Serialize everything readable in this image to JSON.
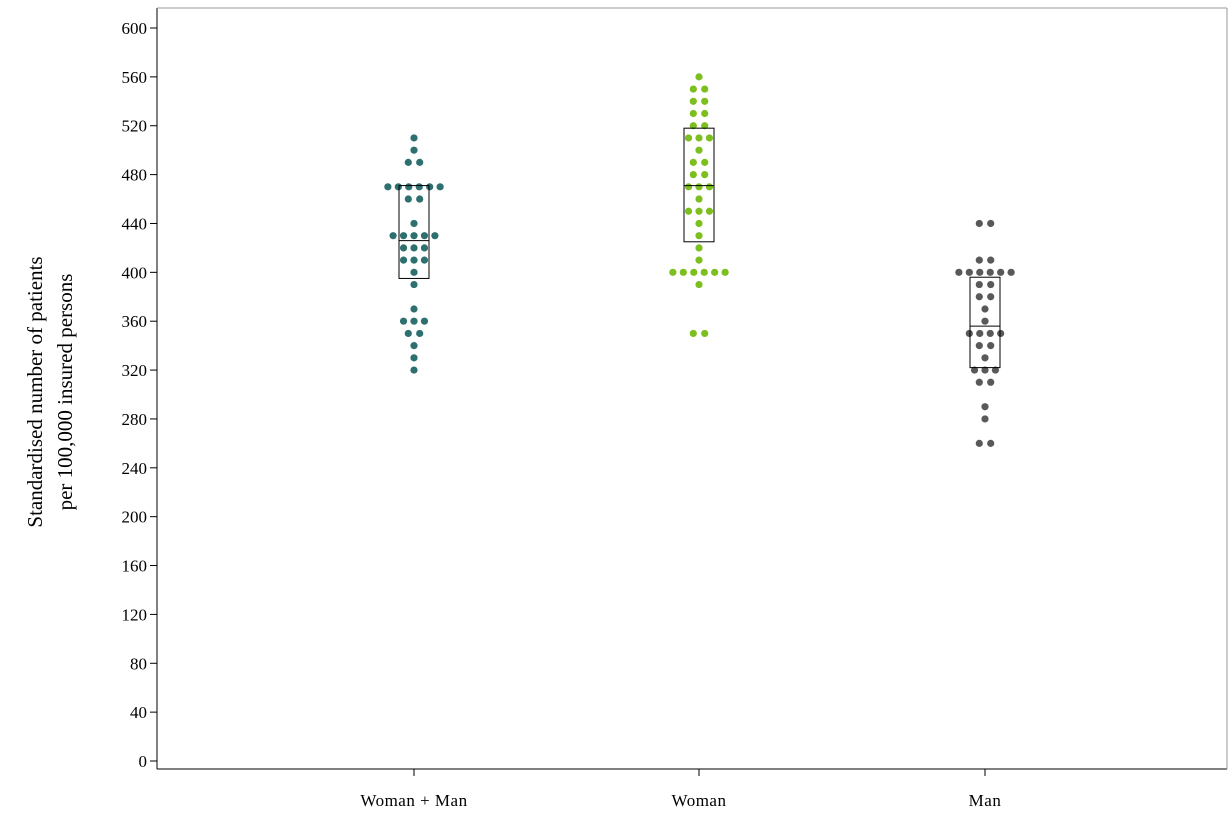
{
  "chart_data": {
    "type": "scatter",
    "subtype": "dot-plot-with-box",
    "title": "",
    "xlabel": "",
    "ylabel_line1": "Standardised number of patients",
    "ylabel_line2": "per 100,000 insured persons",
    "ylim": [
      0,
      620
    ],
    "yticks": [
      0,
      40,
      80,
      120,
      160,
      200,
      240,
      280,
      320,
      360,
      400,
      440,
      480,
      520,
      560,
      600
    ],
    "ytick_labels": [
      "0",
      "40",
      "80",
      "120",
      "160",
      "200",
      "240",
      "280",
      "320",
      "360",
      "400",
      "440",
      "480",
      "520",
      "560",
      "600"
    ],
    "grid": false,
    "categories": [
      "Woman + Man",
      "Woman",
      "Man"
    ],
    "series": [
      {
        "color": "#2e7070",
        "values": [
          510,
          500,
          490,
          490,
          470,
          470,
          470,
          470,
          470,
          470,
          460,
          460,
          440,
          430,
          430,
          430,
          430,
          430,
          420,
          420,
          420,
          410,
          410,
          410,
          400,
          390,
          370,
          360,
          360,
          360,
          350,
          350,
          340,
          330,
          320
        ],
        "box": {
          "q1": 395,
          "median": 426,
          "q3": 471
        }
      },
      {
        "color": "#7cbf1e",
        "values": [
          560,
          550,
          550,
          540,
          540,
          530,
          530,
          520,
          520,
          510,
          510,
          510,
          500,
          490,
          490,
          480,
          480,
          470,
          470,
          470,
          460,
          450,
          450,
          450,
          440,
          430,
          420,
          410,
          400,
          400,
          400,
          400,
          400,
          400,
          390,
          350,
          350
        ],
        "box": {
          "q1": 425,
          "median": 471,
          "q3": 518
        }
      },
      {
        "color": "#595959",
        "values": [
          440,
          440,
          410,
          410,
          400,
          400,
          400,
          400,
          400,
          400,
          390,
          390,
          380,
          380,
          370,
          360,
          350,
          350,
          350,
          350,
          340,
          340,
          330,
          320,
          320,
          320,
          310,
          310,
          290,
          280,
          260,
          260
        ],
        "box": {
          "q1": 322,
          "median": 356,
          "q3": 396
        }
      }
    ]
  }
}
